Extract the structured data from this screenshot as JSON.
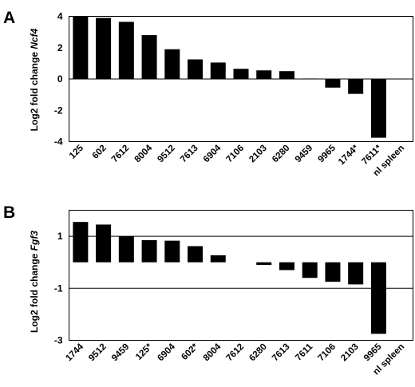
{
  "chart_data": [
    {
      "panel": "A",
      "type": "bar",
      "ylabel_prefix": "Log2 fold change ",
      "ylabel_gene": "Ncf4",
      "ylim": [
        -4,
        4
      ],
      "yticks": [
        "4",
        "2",
        "0",
        "-2",
        "-4"
      ],
      "grid": "horizontal line at 0",
      "categories": [
        "125",
        "602",
        "7612",
        "8004",
        "9512",
        "7613",
        "6904",
        "7106",
        "2103",
        "6280",
        "9459",
        "9965",
        "1744*",
        "7611*",
        "nl spleen"
      ],
      "values": [
        4.0,
        3.9,
        3.65,
        2.8,
        1.9,
        1.25,
        1.05,
        0.65,
        0.55,
        0.5,
        0.03,
        -0.55,
        -0.95,
        -3.75,
        0
      ]
    },
    {
      "panel": "B",
      "type": "bar",
      "ylabel_prefix": "Log2 fold change ",
      "ylabel_gene": "Fgf3",
      "ylim": [
        -3,
        2
      ],
      "yticks": [
        "1",
        "-1",
        "-3"
      ],
      "grid": "horizontal lines at 1, -1, -3",
      "categories": [
        "1744",
        "9512",
        "9459",
        "125*",
        "6904",
        "602*",
        "8004",
        "7612",
        "6280",
        "7613",
        "7611",
        "7106",
        "2103",
        "9965",
        "nl spleen"
      ],
      "values": [
        1.55,
        1.45,
        1.0,
        0.85,
        0.83,
        0.62,
        0.27,
        0.0,
        -0.1,
        -0.3,
        -0.6,
        -0.75,
        -0.85,
        -2.75,
        0
      ]
    }
  ]
}
